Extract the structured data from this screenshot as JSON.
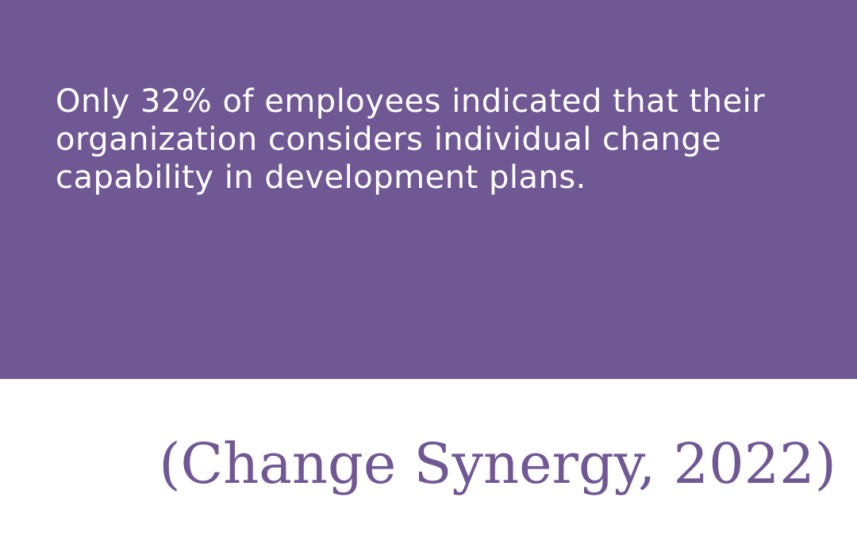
{
  "statement": "Only 32% of employees indicated that their organization considers individual change capability in development plans.",
  "citation": "(Change Synergy, 2022)"
}
